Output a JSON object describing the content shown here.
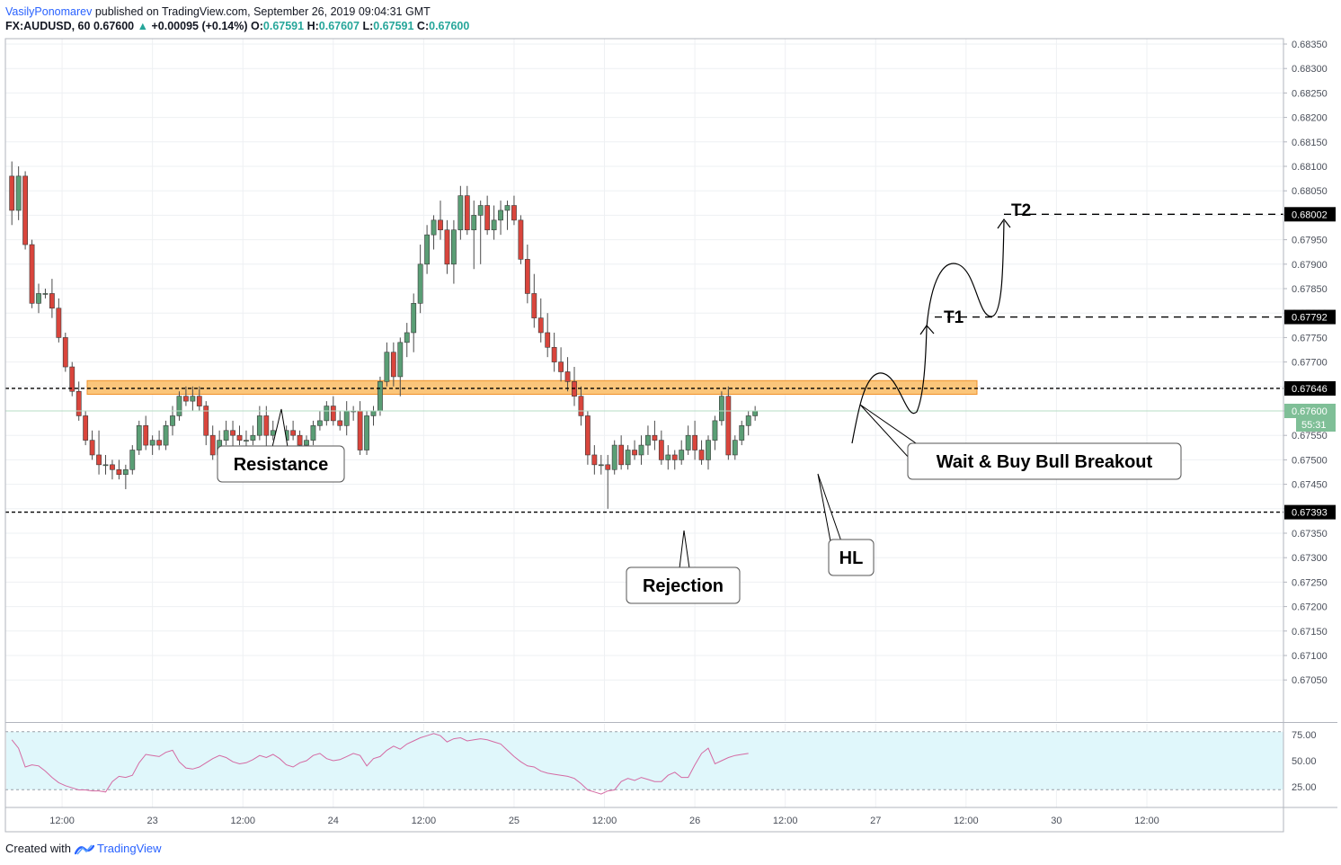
{
  "header": {
    "author": "VasilyPonomarev",
    "published": "published on TradingView.com, September 26, 2019 09:04:31 GMT",
    "symbol": "FX:AUDUSD, 60",
    "last": "0.67600",
    "change_arrow": "▲",
    "change": "+0.00095 (+0.14%)",
    "o_label": "O:",
    "o_value": "0.67591",
    "h_label": "H:",
    "h_value": "0.67607",
    "l_label": "L:",
    "l_value": "0.67591",
    "c_label": "C:",
    "c_value": "0.67600"
  },
  "footer": {
    "created_with": "Created with",
    "brand": "TradingView",
    "logo_icon": "tradingview-logo-icon"
  },
  "colors": {
    "up": "#5a9e75",
    "down": "#d9453c",
    "zone_fill": "#fbc57a",
    "zone_stroke": "#f0922b",
    "rsi_line": "#d46aa3",
    "rsi_band": "#e0f7fb",
    "price_label_bg": "#000000",
    "current_label_bg": "#7fbf97",
    "grid": "#eef0f3"
  },
  "chart_data": {
    "type": "candlestick",
    "symbol": "FX:AUDUSD",
    "interval": "60",
    "ylim": [
      0.67,
      0.6836
    ],
    "price_ticks": [
      "0.68350",
      "0.68300",
      "0.68250",
      "0.68200",
      "0.68150",
      "0.68100",
      "0.68050",
      "0.68000",
      "0.67950",
      "0.67900",
      "0.67850",
      "0.67800",
      "0.67750",
      "0.67700",
      "0.67650",
      "0.67600",
      "0.67550",
      "0.67500",
      "0.67450",
      "0.67400",
      "0.67350",
      "0.67300",
      "0.67250",
      "0.67200",
      "0.67150",
      "0.67100",
      "0.67050"
    ],
    "time_ticks": [
      "12:00",
      "23",
      "12:00",
      "24",
      "12:00",
      "25",
      "12:00",
      "26",
      "12:00",
      "27",
      "12:00",
      "30",
      "12:00"
    ],
    "bar_count": 171,
    "bars_per_day": 27,
    "time_axis_start": "Sep 22 ~06:00 (hourly bars, trading hours compressed)",
    "candles": [
      [
        0.6808,
        0.6811,
        0.6798,
        0.6801
      ],
      [
        0.6801,
        0.681,
        0.6799,
        0.6808
      ],
      [
        0.6808,
        0.6809,
        0.6793,
        0.6794
      ],
      [
        0.6794,
        0.6795,
        0.6781,
        0.6782
      ],
      [
        0.6782,
        0.6786,
        0.678,
        0.6784
      ],
      [
        0.6784,
        0.6785,
        0.6783,
        0.6784
      ],
      [
        0.6784,
        0.6787,
        0.6779,
        0.6781
      ],
      [
        0.6781,
        0.6783,
        0.6774,
        0.6775
      ],
      [
        0.6775,
        0.6776,
        0.6768,
        0.6769
      ],
      [
        0.6769,
        0.677,
        0.6763,
        0.6764
      ],
      [
        0.6764,
        0.6766,
        0.6758,
        0.6759
      ],
      [
        0.6759,
        0.676,
        0.6753,
        0.6754
      ],
      [
        0.6754,
        0.6756,
        0.675,
        0.6751
      ],
      [
        0.6751,
        0.6756,
        0.6747,
        0.6749
      ],
      [
        0.6749,
        0.6751,
        0.6747,
        0.6749
      ],
      [
        0.6749,
        0.675,
        0.6746,
        0.6748
      ],
      [
        0.6748,
        0.675,
        0.6746,
        0.6747
      ],
      [
        0.6747,
        0.6749,
        0.6744,
        0.6748
      ],
      [
        0.6748,
        0.6753,
        0.6747,
        0.6752
      ],
      [
        0.6752,
        0.6758,
        0.6751,
        0.6757
      ],
      [
        0.6757,
        0.6759,
        0.6752,
        0.6753
      ],
      [
        0.6753,
        0.6755,
        0.6751,
        0.6754
      ],
      [
        0.6754,
        0.6756,
        0.6752,
        0.6753
      ],
      [
        0.6753,
        0.6758,
        0.6752,
        0.6757
      ],
      [
        0.6757,
        0.6761,
        0.6755,
        0.6759
      ],
      [
        0.6759,
        0.6764,
        0.6758,
        0.6763
      ],
      [
        0.6763,
        0.6765,
        0.6761,
        0.6762
      ],
      [
        0.6762,
        0.6765,
        0.676,
        0.6763
      ],
      [
        0.6763,
        0.6765,
        0.676,
        0.6761
      ],
      [
        0.6761,
        0.6762,
        0.6753,
        0.6755
      ],
      [
        0.6755,
        0.6757,
        0.675,
        0.6751
      ],
      [
        0.6751,
        0.6756,
        0.675,
        0.6754
      ],
      [
        0.6754,
        0.6758,
        0.6753,
        0.6756
      ],
      [
        0.6756,
        0.6758,
        0.6752,
        0.6755
      ],
      [
        0.6755,
        0.6757,
        0.6753,
        0.6754
      ],
      [
        0.6754,
        0.6756,
        0.6752,
        0.6754
      ],
      [
        0.6754,
        0.6757,
        0.6753,
        0.6755
      ],
      [
        0.6755,
        0.6761,
        0.6754,
        0.6759
      ],
      [
        0.6759,
        0.6761,
        0.6752,
        0.6755
      ],
      [
        0.6755,
        0.6758,
        0.6754,
        0.6756
      ],
      [
        0.6756,
        0.6757,
        0.6752,
        0.6754
      ],
      [
        0.6754,
        0.6757,
        0.6753,
        0.6756
      ],
      [
        0.6756,
        0.6758,
        0.6754,
        0.6755
      ],
      [
        0.6755,
        0.6756,
        0.6752,
        0.6753
      ],
      [
        0.6753,
        0.6755,
        0.6751,
        0.6754
      ],
      [
        0.6754,
        0.6758,
        0.6753,
        0.6757
      ],
      [
        0.6757,
        0.676,
        0.6756,
        0.6758
      ],
      [
        0.6758,
        0.6762,
        0.6757,
        0.6761
      ],
      [
        0.6761,
        0.6763,
        0.6757,
        0.6758
      ],
      [
        0.6758,
        0.676,
        0.6756,
        0.6757
      ],
      [
        0.6757,
        0.6762,
        0.6755,
        0.676
      ],
      [
        0.676,
        0.6761,
        0.6758,
        0.676
      ],
      [
        0.676,
        0.6762,
        0.6751,
        0.6752
      ],
      [
        0.6752,
        0.676,
        0.6751,
        0.6759
      ],
      [
        0.6759,
        0.6761,
        0.6757,
        0.676
      ],
      [
        0.676,
        0.6767,
        0.6759,
        0.6766
      ],
      [
        0.6766,
        0.6774,
        0.6765,
        0.6772
      ],
      [
        0.6772,
        0.6774,
        0.6765,
        0.6767
      ],
      [
        0.6767,
        0.6775,
        0.6763,
        0.6774
      ],
      [
        0.6774,
        0.6778,
        0.6771,
        0.6776
      ],
      [
        0.6776,
        0.6784,
        0.6772,
        0.6782
      ],
      [
        0.6782,
        0.6794,
        0.678,
        0.679
      ],
      [
        0.679,
        0.6798,
        0.6788,
        0.6796
      ],
      [
        0.6796,
        0.68,
        0.6793,
        0.6799
      ],
      [
        0.6799,
        0.6803,
        0.6795,
        0.6797
      ],
      [
        0.6797,
        0.6799,
        0.6788,
        0.679
      ],
      [
        0.679,
        0.6799,
        0.6786,
        0.6797
      ],
      [
        0.6797,
        0.6806,
        0.6795,
        0.6804
      ],
      [
        0.6804,
        0.6806,
        0.6796,
        0.6797
      ],
      [
        0.6797,
        0.6803,
        0.6789,
        0.68
      ],
      [
        0.68,
        0.6803,
        0.679,
        0.6802
      ],
      [
        0.6802,
        0.6804,
        0.6796,
        0.6797
      ],
      [
        0.6797,
        0.6802,
        0.6795,
        0.6799
      ],
      [
        0.6799,
        0.6803,
        0.6796,
        0.6801
      ],
      [
        0.6801,
        0.6803,
        0.6797,
        0.6802
      ],
      [
        0.6802,
        0.6804,
        0.6798,
        0.6799
      ],
      [
        0.6799,
        0.68,
        0.679,
        0.6791
      ],
      [
        0.6791,
        0.6794,
        0.6782,
        0.6784
      ],
      [
        0.6784,
        0.6788,
        0.6777,
        0.6779
      ],
      [
        0.6779,
        0.6783,
        0.6774,
        0.6776
      ],
      [
        0.6776,
        0.678,
        0.6771,
        0.6773
      ],
      [
        0.6773,
        0.6776,
        0.6768,
        0.677
      ],
      [
        0.677,
        0.6773,
        0.6766,
        0.6768
      ],
      [
        0.6768,
        0.6771,
        0.6764,
        0.6766
      ],
      [
        0.6766,
        0.6769,
        0.6761,
        0.6763
      ],
      [
        0.6763,
        0.6765,
        0.6757,
        0.6759
      ],
      [
        0.6759,
        0.676,
        0.6749,
        0.6751
      ],
      [
        0.6751,
        0.6753,
        0.6747,
        0.6749
      ],
      [
        0.6749,
        0.6751,
        0.6747,
        0.6749
      ],
      [
        0.6749,
        0.6751,
        0.674,
        0.6748
      ],
      [
        0.6748,
        0.6754,
        0.6747,
        0.6753
      ],
      [
        0.6753,
        0.6755,
        0.6748,
        0.6749
      ],
      [
        0.6749,
        0.6753,
        0.6748,
        0.6752
      ],
      [
        0.6752,
        0.6754,
        0.675,
        0.6751
      ],
      [
        0.6751,
        0.6755,
        0.6749,
        0.6753
      ],
      [
        0.6753,
        0.6757,
        0.6751,
        0.6755
      ],
      [
        0.6755,
        0.6758,
        0.6752,
        0.6754
      ],
      [
        0.6754,
        0.6756,
        0.6749,
        0.675
      ],
      [
        0.675,
        0.6753,
        0.6748,
        0.6751
      ],
      [
        0.6751,
        0.6752,
        0.6748,
        0.675
      ],
      [
        0.675,
        0.6754,
        0.6749,
        0.6752
      ],
      [
        0.6752,
        0.6757,
        0.6751,
        0.6755
      ],
      [
        0.6755,
        0.6758,
        0.675,
        0.6752
      ],
      [
        0.6752,
        0.6754,
        0.6749,
        0.675
      ],
      [
        0.675,
        0.6755,
        0.6748,
        0.6754
      ],
      [
        0.6754,
        0.6759,
        0.6752,
        0.6758
      ],
      [
        0.6758,
        0.6764,
        0.6757,
        0.6763
      ],
      [
        0.6763,
        0.6765,
        0.675,
        0.6751
      ],
      [
        0.6751,
        0.6755,
        0.675,
        0.6754
      ],
      [
        0.6754,
        0.6758,
        0.6753,
        0.6757
      ],
      [
        0.6757,
        0.676,
        0.6755,
        0.6759
      ],
      [
        0.6759,
        0.6761,
        0.6758,
        0.676
      ]
    ],
    "rsi": {
      "levels": [
        "75.00",
        "50.00",
        "25.00"
      ],
      "upper": 70,
      "lower": 30,
      "values": [
        70,
        62,
        44,
        46,
        45,
        40,
        34,
        29,
        26,
        24,
        22,
        22,
        21,
        21,
        20,
        30,
        35,
        34,
        36,
        48,
        56,
        55,
        54,
        58,
        60,
        49,
        43,
        42,
        44,
        48,
        52,
        55,
        53,
        49,
        47,
        48,
        51,
        55,
        53,
        56,
        52,
        46,
        44,
        48,
        50,
        55,
        57,
        52,
        50,
        51,
        54,
        57,
        55,
        45,
        52,
        54,
        60,
        64,
        61,
        66,
        69,
        72,
        74,
        76,
        74,
        68,
        71,
        72,
        69,
        70,
        71,
        70,
        68,
        66,
        60,
        54,
        49,
        45,
        44,
        40,
        38,
        37,
        36,
        35,
        33,
        28,
        22,
        20,
        18,
        21,
        22,
        30,
        33,
        31,
        34,
        32,
        30,
        30,
        36,
        39,
        34,
        34,
        46,
        57,
        62,
        47,
        50,
        53,
        55,
        56,
        57
      ]
    },
    "annotations": {
      "resistance_label": "Resistance",
      "rejection_label": "Rejection",
      "hl_label": "HL",
      "breakout_label": "Wait & Buy Bull Breakout",
      "t1_label": "T1",
      "t2_label": "T2",
      "levels": {
        "t2": {
          "price": 0.68002,
          "label": "0.68002"
        },
        "t1": {
          "price": 0.67792,
          "label": "0.67792"
        },
        "resistance": {
          "price": 0.67646,
          "label": "0.67646"
        },
        "support": {
          "price": 0.67393,
          "label": "0.67393"
        },
        "current": {
          "price": 0.676,
          "label": "0.67600",
          "countdown": "55:31"
        }
      },
      "zone": {
        "low": 0.67634,
        "high": 0.67662
      }
    }
  }
}
